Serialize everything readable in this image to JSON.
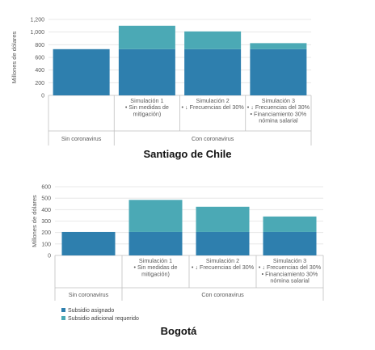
{
  "colors": {
    "base": "#2E7FAE",
    "extra": "#4BA9B5",
    "grid": "#E3E3E3",
    "axis": "#BFBFBF"
  },
  "legend": {
    "base_label": "Subsidio asignado",
    "extra_label": "Subsidio adicional requerido"
  },
  "chart_data": [
    {
      "type": "bar",
      "stacked": true,
      "title": "Santiago de Chile",
      "ylabel": "Millones de dólares",
      "ylim": [
        0,
        1200
      ],
      "yticks": [
        "0",
        "200",
        "400",
        "600",
        "800",
        "1,000",
        "1,200"
      ],
      "categories": [
        {
          "lines": [
            "Sin coronavirus"
          ]
        },
        {
          "lines": [
            "Simulación 1",
            "• Sin medidas de",
            "mitigación)"
          ]
        },
        {
          "lines": [
            "Simulación 2",
            "• ↓ Frecuencias del 30%"
          ]
        },
        {
          "lines": [
            "Simulación 3",
            "• ↓ Frecuencias del 30%",
            "• Financiamiento 30%",
            "nómina salarial"
          ]
        }
      ],
      "groups": [
        {
          "label": "Sin coronavirus",
          "span": [
            0,
            0
          ]
        },
        {
          "label": "Con coronavirus",
          "span": [
            1,
            3
          ]
        }
      ],
      "series": [
        {
          "name": "Subsidio asignado",
          "values": [
            730,
            730,
            730,
            730
          ]
        },
        {
          "name": "Subsidio adicional requerido",
          "values": [
            0,
            370,
            280,
            95
          ]
        }
      ]
    },
    {
      "type": "bar",
      "stacked": true,
      "title": "Bogotá",
      "ylabel": "Millones de dólares",
      "ylim": [
        0,
        600
      ],
      "yticks": [
        "0",
        "100",
        "200",
        "300",
        "400",
        "500",
        "600"
      ],
      "categories": [
        {
          "lines": [
            "Sin coronavirus"
          ]
        },
        {
          "lines": [
            "Simulación 1",
            "• Sin medidas de",
            "mitigación)"
          ]
        },
        {
          "lines": [
            "Simulación 2",
            "• ↓ Frecuencias del 30%"
          ]
        },
        {
          "lines": [
            "Simulación 3",
            "• ↓ Frecuencias del 30%",
            "• Financiamiento 30%",
            "nómina salarial"
          ]
        }
      ],
      "groups": [
        {
          "label": "Sin coronavirus",
          "span": [
            0,
            0
          ]
        },
        {
          "label": "Con coronavirus",
          "span": [
            1,
            3
          ]
        }
      ],
      "series": [
        {
          "name": "Subsidio asignado",
          "values": [
            205,
            205,
            205,
            205
          ]
        },
        {
          "name": "Subsidio adicional requerido",
          "values": [
            0,
            280,
            220,
            135
          ]
        }
      ]
    }
  ]
}
